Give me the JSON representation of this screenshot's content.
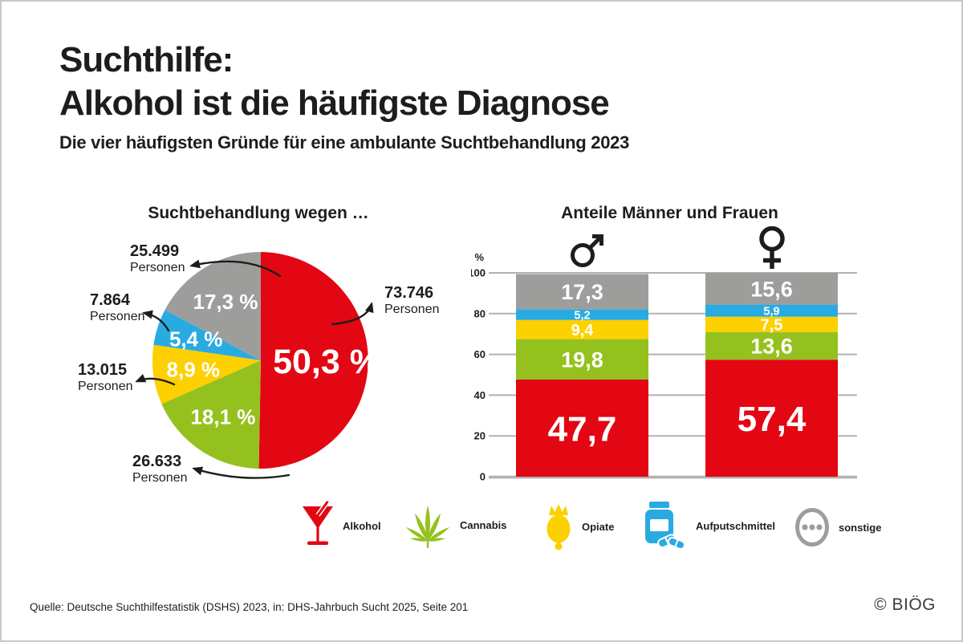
{
  "header": {
    "title_line1": "Suchthilfe:",
    "title_line2": "Alkohol ist die häufigste Diagnose",
    "subtitle": "Die vier häufigsten Gründe für eine ambulante Suchtbehandlung 2023"
  },
  "colors": {
    "alkohol": "#e30613",
    "cannabis": "#95c11f",
    "opiate": "#fdd000",
    "aufputschmittel": "#29abe2",
    "sonstige": "#9d9d9c",
    "grid": "#b2b2b2",
    "text": "#1d1d1b"
  },
  "chart_data": [
    {
      "type": "pie",
      "title": "Suchtbehandlung wegen …",
      "direction": "clockwise",
      "start": "top",
      "persons_suffix": "Personen",
      "slices": [
        {
          "label": "Alkohol",
          "value_pct": 50.3,
          "value_label": "50,3 %",
          "persons": "73.746",
          "color_key": "alkohol"
        },
        {
          "label": "Cannabis",
          "value_pct": 18.1,
          "value_label": "18,1 %",
          "persons": "26.633",
          "color_key": "cannabis"
        },
        {
          "label": "Opiate",
          "value_pct": 8.9,
          "value_label": "8,9 %",
          "persons": "13.015",
          "color_key": "opiate"
        },
        {
          "label": "Aufputschmittel",
          "value_pct": 5.4,
          "value_label": "5,4 %",
          "persons": "7.864",
          "color_key": "aufputschmittel"
        },
        {
          "label": "sonstige",
          "value_pct": 17.3,
          "value_label": "17,3 %",
          "persons": "25.499",
          "color_key": "sonstige"
        }
      ]
    },
    {
      "type": "stacked-bar",
      "title": "Anteile Männer und Frauen",
      "ylabel": "%",
      "ylim": [
        0,
        100
      ],
      "yticks": [
        0,
        20,
        40,
        60,
        80,
        100
      ],
      "grid": true,
      "categories": [
        "Männer",
        "Frauen"
      ],
      "series": [
        {
          "name": "Alkohol",
          "color_key": "alkohol",
          "values": [
            47.7,
            57.4
          ],
          "labels": [
            "47,7",
            "57,4"
          ]
        },
        {
          "name": "Cannabis",
          "color_key": "cannabis",
          "values": [
            19.8,
            13.6
          ],
          "labels": [
            "19,8",
            "13,6"
          ]
        },
        {
          "name": "Opiate",
          "color_key": "opiate",
          "values": [
            9.4,
            7.5
          ],
          "labels": [
            "9,4",
            "7,5"
          ]
        },
        {
          "name": "Aufputschmittel",
          "color_key": "aufputschmittel",
          "values": [
            5.2,
            5.9
          ],
          "labels": [
            "5,2",
            "5,9"
          ]
        },
        {
          "name": "sonstige",
          "color_key": "sonstige",
          "values": [
            17.3,
            15.6
          ],
          "labels": [
            "17,3",
            "15,6"
          ]
        }
      ]
    }
  ],
  "legend": {
    "items": [
      {
        "label": "Alkohol",
        "icon": "cocktail-icon"
      },
      {
        "label": "Cannabis",
        "icon": "cannabis-leaf-icon"
      },
      {
        "label": "Opiate",
        "icon": "poppy-icon"
      },
      {
        "label": "Aufputschmittel",
        "icon": "pill-bottle-icon"
      },
      {
        "label": "sonstige",
        "icon": "ellipsis-circle-icon"
      }
    ]
  },
  "footer": {
    "source": "Quelle: Deutsche Suchthilfestatistik (DSHS) 2023, in: DHS-Jahrbuch Sucht 2025, Seite 201",
    "logo": "© BIÖG"
  }
}
